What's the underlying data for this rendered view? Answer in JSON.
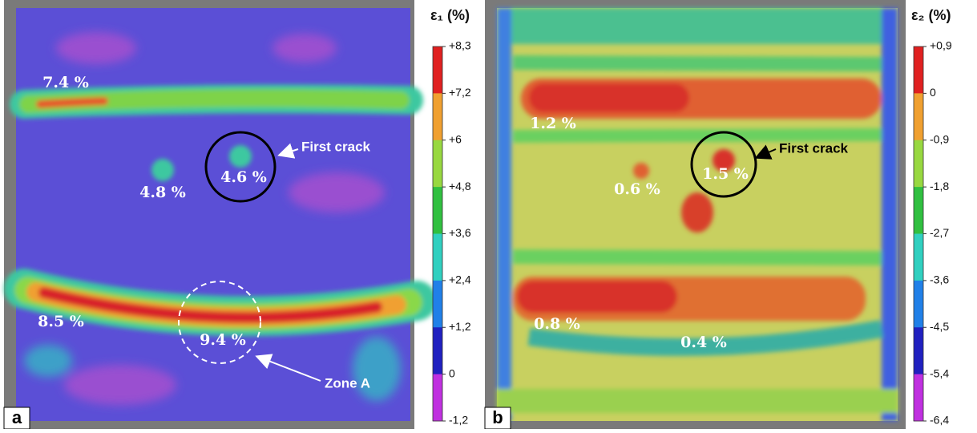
{
  "panels": [
    {
      "label": "a",
      "colorbar": {
        "title": "ε₁ (%)",
        "ticks": [
          "+8,3",
          "+7,2",
          "+6",
          "+4,8",
          "+3,6",
          "+2,4",
          "+1,2",
          "0",
          "-1,2"
        ]
      },
      "annotations": [
        "7.4 %",
        "4.8 %",
        "4.6 %",
        "8.5 %",
        "9.4 %"
      ],
      "callouts": [
        "First crack",
        "Zone A"
      ]
    },
    {
      "label": "b",
      "colorbar": {
        "title": "ε₂ (%)",
        "ticks": [
          "+0,9",
          "0",
          "-0,9",
          "-1,8",
          "-2,7",
          "-3,6",
          "-4,5",
          "-5,4",
          "-6,4"
        ]
      },
      "annotations": [
        "1.2 %",
        "0.6 %",
        "1.5 %",
        "0.8 %",
        "0.4 %"
      ],
      "callouts": [
        "First crack"
      ]
    }
  ]
}
